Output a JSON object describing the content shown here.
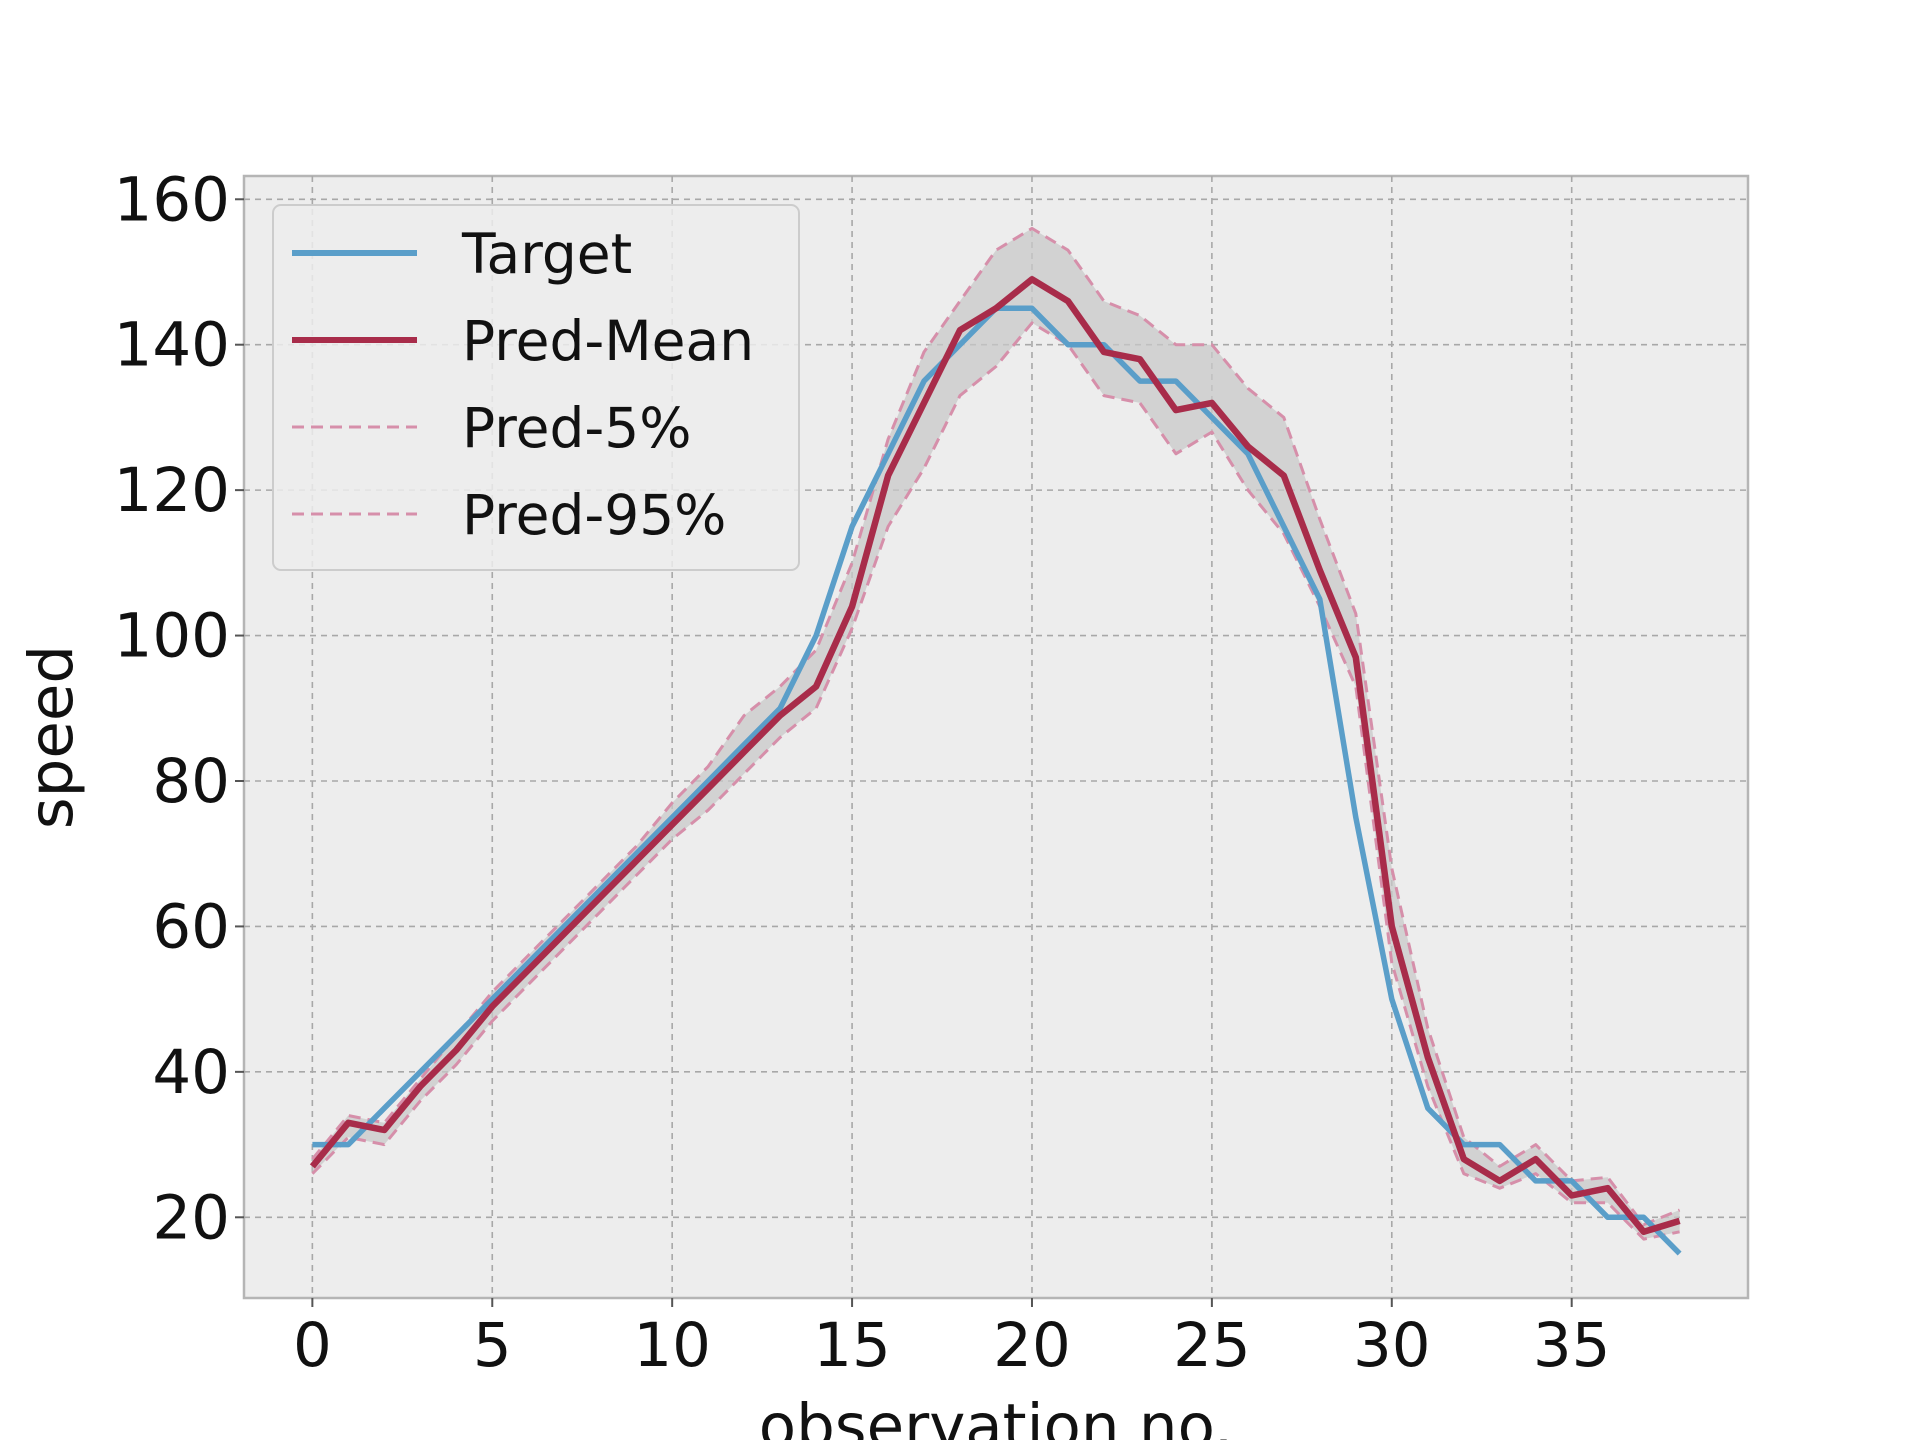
{
  "chart_data": {
    "type": "line",
    "xlabel": "observation no.",
    "ylabel": "speed",
    "xlim": [
      -1.9,
      39.9
    ],
    "ylim": [
      8.9,
      163.2
    ],
    "xticks": [
      0,
      5,
      10,
      15,
      20,
      25,
      30,
      35
    ],
    "yticks": [
      20,
      40,
      60,
      80,
      100,
      120,
      140,
      160
    ],
    "grid": true,
    "legend_position": "top-left",
    "x": [
      0,
      1,
      2,
      3,
      4,
      5,
      6,
      7,
      8,
      9,
      10,
      11,
      12,
      13,
      14,
      15,
      16,
      17,
      18,
      19,
      20,
      21,
      22,
      23,
      24,
      25,
      26,
      27,
      28,
      29,
      30,
      31,
      32,
      33,
      34,
      35,
      36,
      37,
      38
    ],
    "series": [
      {
        "name": "Target",
        "color": "#5a9ec9",
        "style": "solid",
        "values": [
          30,
          30,
          35,
          40,
          45,
          50,
          55,
          60,
          65,
          70,
          75,
          80,
          85,
          90,
          100,
          115,
          125,
          135,
          140,
          145,
          145,
          140,
          140,
          135,
          135,
          130,
          125,
          115,
          105,
          75,
          50,
          35,
          30,
          30,
          25,
          25,
          20,
          20,
          15
        ]
      },
      {
        "name": "Pred-Mean",
        "color": "#a82c4a",
        "style": "solid",
        "values": [
          27,
          33,
          32,
          38,
          43,
          49,
          54,
          59,
          64,
          69,
          74,
          79,
          84,
          89,
          93,
          104,
          122,
          132,
          142,
          145,
          149,
          146,
          139,
          138,
          131,
          132,
          126,
          122,
          109,
          97,
          60,
          42,
          28,
          25,
          28,
          23,
          24,
          18,
          19.5
        ]
      },
      {
        "name": "Pred-5%",
        "color": "#d68faa",
        "style": "dashed",
        "values": [
          26,
          31,
          30,
          36,
          41,
          47,
          52,
          57,
          62,
          67,
          72,
          76,
          81,
          86,
          90,
          101,
          115,
          123,
          133,
          137,
          143,
          140,
          133,
          132,
          125,
          128,
          120,
          114,
          104,
          93,
          55,
          38,
          26,
          24,
          26,
          22,
          22,
          17,
          18
        ]
      },
      {
        "name": "Pred-95%",
        "color": "#d68faa",
        "style": "dashed",
        "values": [
          28,
          34,
          33,
          39,
          45,
          51,
          56,
          61,
          66,
          71,
          77,
          82,
          89,
          93,
          98,
          110,
          127,
          139,
          146,
          153,
          156,
          153,
          146,
          144,
          140,
          140,
          134,
          130,
          116,
          103,
          68,
          46,
          31,
          27,
          30,
          25,
          25.5,
          19,
          21
        ]
      }
    ]
  }
}
